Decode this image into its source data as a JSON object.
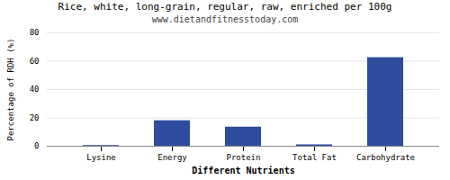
{
  "chart_data": {
    "type": "bar",
    "title": "Rice, white, long-grain, regular, raw, enriched per 100g",
    "subtitle": "www.dietandfitnesstoday.com",
    "categories": [
      "Lysine",
      "Energy",
      "Protein",
      "Total Fat",
      "Carbohydrate"
    ],
    "values": [
      0.5,
      18.0,
      13.5,
      1.0,
      62.5
    ],
    "color": "#2e4d9e",
    "xlabel": "Different Nutrients",
    "ylabel": "Percentage of RDH (%)",
    "ylim": [
      0,
      80
    ],
    "yticks": [
      0,
      20,
      40,
      60,
      80
    ],
    "grid": true
  }
}
